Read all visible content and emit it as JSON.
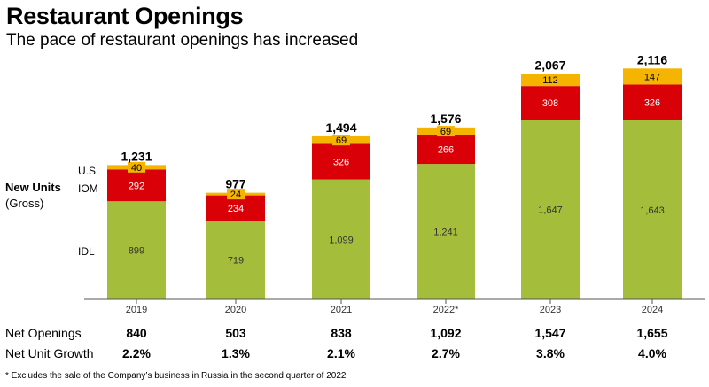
{
  "header": {
    "title": "Restaurant Openings",
    "subtitle": "The pace of restaurant openings has increased"
  },
  "ylabel": {
    "bold": "New Units",
    "normal": "(Gross)"
  },
  "legend_labels": [
    "U.S.",
    "IOM",
    "IDL"
  ],
  "colors": {
    "us": "#F4B400",
    "iom": "#D90007",
    "idl": "#A4BE3C",
    "axis": "#555555"
  },
  "chart_data": {
    "type": "bar",
    "stacked": true,
    "title": "Restaurant Openings",
    "subtitle": "The pace of restaurant openings has increased",
    "ylabel": "New Units (Gross)",
    "categories": [
      "2019",
      "2020",
      "2021",
      "2022*",
      "2023",
      "2024"
    ],
    "series": [
      {
        "name": "IDL",
        "values": [
          899,
          719,
          1099,
          1241,
          1647,
          1643
        ]
      },
      {
        "name": "IOM",
        "values": [
          292,
          234,
          326,
          266,
          308,
          326
        ]
      },
      {
        "name": "U.S.",
        "values": [
          40,
          24,
          69,
          69,
          112,
          147
        ]
      }
    ],
    "totals": [
      "1,231",
      "977",
      "1,494",
      "1,576",
      "2,067",
      "2,116"
    ],
    "value_labels": {
      "IDL": [
        "899",
        "719",
        "1,099",
        "1,241",
        "1,647",
        "1,643"
      ],
      "IOM": [
        "292",
        "234",
        "326",
        "266",
        "308",
        "326"
      ],
      "U.S.": [
        "40",
        "24",
        "69",
        "69",
        "112",
        "147"
      ]
    },
    "ylim": [
      0,
      2200
    ],
    "grid": false
  },
  "table": {
    "rows": [
      {
        "label": "Net Openings",
        "values": [
          "840",
          "503",
          "838",
          "1,092",
          "1,547",
          "1,655"
        ]
      },
      {
        "label": "Net Unit Growth",
        "values": [
          "2.2%",
          "1.3%",
          "2.1%",
          "2.7%",
          "3.8%",
          "4.0%"
        ]
      }
    ]
  },
  "footnote": "* Excludes the sale of the Company’s business in Russia in the second quarter of 2022"
}
